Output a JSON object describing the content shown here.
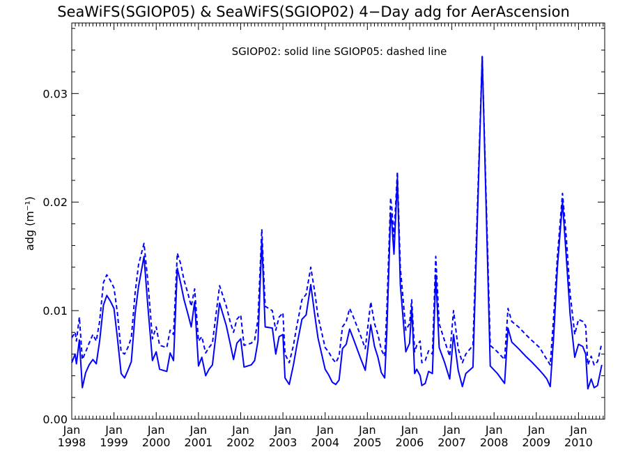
{
  "chart_data": {
    "type": "line",
    "title": "SeaWiFS(SGIOP05) & SeaWiFS(SGIOP02) 4−Day adg for AerAscension",
    "ylabel": "adg (m⁻¹)",
    "xlabel": "",
    "annotation": "SGIOP02: solid line   SGIOP05: dashed line",
    "xlim": [
      1998.0,
      2010.62
    ],
    "ylim": [
      0.0,
      0.0365
    ],
    "y_ticks": [
      {
        "value": 0.0,
        "label": "0.00"
      },
      {
        "value": 0.01,
        "label": "0.01"
      },
      {
        "value": 0.02,
        "label": "0.02"
      },
      {
        "value": 0.03,
        "label": "0.03"
      }
    ],
    "x_ticks": [
      {
        "value": 1998,
        "month": "Jan",
        "year": "1998"
      },
      {
        "value": 1999,
        "month": "Jan",
        "year": "1999"
      },
      {
        "value": 2000,
        "month": "Jan",
        "year": "2000"
      },
      {
        "value": 2001,
        "month": "Jan",
        "year": "2001"
      },
      {
        "value": 2002,
        "month": "Jan",
        "year": "2002"
      },
      {
        "value": 2003,
        "month": "Jan",
        "year": "2003"
      },
      {
        "value": 2004,
        "month": "Jan",
        "year": "2004"
      },
      {
        "value": 2005,
        "month": "Jan",
        "year": "2005"
      },
      {
        "value": 2006,
        "month": "Jan",
        "year": "2006"
      },
      {
        "value": 2007,
        "month": "Jan",
        "year": "2007"
      },
      {
        "value": 2008,
        "month": "Jan",
        "year": "2008"
      },
      {
        "value": 2009,
        "month": "Jan",
        "year": "2009"
      },
      {
        "value": 2010,
        "month": "Jan",
        "year": "2010"
      }
    ],
    "grid": false,
    "line_color": "#0000ff",
    "series": [
      {
        "name": "SGIOP02",
        "style": "solid",
        "points": [
          [
            1998.0,
            0.0052
          ],
          [
            1998.08,
            0.006
          ],
          [
            1998.11,
            0.0051
          ],
          [
            1998.18,
            0.0073
          ],
          [
            1998.25,
            0.0029
          ],
          [
            1998.33,
            0.0043
          ],
          [
            1998.41,
            0.005
          ],
          [
            1998.5,
            0.0055
          ],
          [
            1998.58,
            0.0051
          ],
          [
            1998.66,
            0.0072
          ],
          [
            1998.75,
            0.0105
          ],
          [
            1998.83,
            0.0114
          ],
          [
            1998.91,
            0.0109
          ],
          [
            1999.0,
            0.0102
          ],
          [
            1999.08,
            0.0075
          ],
          [
            1999.17,
            0.0042
          ],
          [
            1999.25,
            0.0038
          ],
          [
            1999.33,
            0.0045
          ],
          [
            1999.41,
            0.0053
          ],
          [
            1999.5,
            0.0097
          ],
          [
            1999.58,
            0.0122
          ],
          [
            1999.71,
            0.015
          ],
          [
            1999.8,
            0.0105
          ],
          [
            1999.91,
            0.0054
          ],
          [
            2000.0,
            0.0062
          ],
          [
            2000.08,
            0.0046
          ],
          [
            2000.25,
            0.0044
          ],
          [
            2000.33,
            0.0061
          ],
          [
            2000.41,
            0.0054
          ],
          [
            2000.5,
            0.0139
          ],
          [
            2000.58,
            0.0125
          ],
          [
            2000.66,
            0.011
          ],
          [
            2000.75,
            0.0097
          ],
          [
            2000.83,
            0.0085
          ],
          [
            2000.91,
            0.0108
          ],
          [
            2001.0,
            0.0049
          ],
          [
            2001.08,
            0.0057
          ],
          [
            2001.17,
            0.004
          ],
          [
            2001.25,
            0.0046
          ],
          [
            2001.33,
            0.005
          ],
          [
            2001.5,
            0.0107
          ],
          [
            2001.66,
            0.0086
          ],
          [
            2001.75,
            0.007
          ],
          [
            2001.83,
            0.0055
          ],
          [
            2001.91,
            0.007
          ],
          [
            2002.0,
            0.0074
          ],
          [
            2002.08,
            0.0048
          ],
          [
            2002.25,
            0.005
          ],
          [
            2002.33,
            0.0054
          ],
          [
            2002.41,
            0.0072
          ],
          [
            2002.5,
            0.0165
          ],
          [
            2002.58,
            0.0085
          ],
          [
            2002.75,
            0.0084
          ],
          [
            2002.83,
            0.006
          ],
          [
            2002.91,
            0.0076
          ],
          [
            2003.0,
            0.0078
          ],
          [
            2003.05,
            0.0038
          ],
          [
            2003.15,
            0.0032
          ],
          [
            2003.25,
            0.005
          ],
          [
            2003.33,
            0.0068
          ],
          [
            2003.45,
            0.0092
          ],
          [
            2003.55,
            0.0096
          ],
          [
            2003.66,
            0.0124
          ],
          [
            2003.75,
            0.0097
          ],
          [
            2003.83,
            0.0075
          ],
          [
            2004.0,
            0.0046
          ],
          [
            2004.08,
            0.0041
          ],
          [
            2004.17,
            0.0034
          ],
          [
            2004.25,
            0.0032
          ],
          [
            2004.33,
            0.0036
          ],
          [
            2004.41,
            0.0065
          ],
          [
            2004.5,
            0.0069
          ],
          [
            2004.58,
            0.0083
          ],
          [
            2004.66,
            0.0075
          ],
          [
            2004.83,
            0.0057
          ],
          [
            2004.95,
            0.0045
          ],
          [
            2005.08,
            0.0087
          ],
          [
            2005.17,
            0.0067
          ],
          [
            2005.25,
            0.0057
          ],
          [
            2005.33,
            0.0043
          ],
          [
            2005.41,
            0.0038
          ],
          [
            2005.46,
            0.0079
          ],
          [
            2005.55,
            0.019
          ],
          [
            2005.58,
            0.018
          ],
          [
            2005.63,
            0.0152
          ],
          [
            2005.71,
            0.0222
          ],
          [
            2005.78,
            0.0124
          ],
          [
            2005.91,
            0.0062
          ],
          [
            2006.0,
            0.007
          ],
          [
            2006.05,
            0.0103
          ],
          [
            2006.12,
            0.0042
          ],
          [
            2006.17,
            0.0046
          ],
          [
            2006.25,
            0.004
          ],
          [
            2006.29,
            0.0031
          ],
          [
            2006.37,
            0.0033
          ],
          [
            2006.45,
            0.0044
          ],
          [
            2006.54,
            0.0042
          ],
          [
            2006.62,
            0.0133
          ],
          [
            2006.7,
            0.0066
          ],
          [
            2006.83,
            0.0052
          ],
          [
            2006.95,
            0.0037
          ],
          [
            2007.04,
            0.0078
          ],
          [
            2007.15,
            0.0045
          ],
          [
            2007.25,
            0.003
          ],
          [
            2007.33,
            0.0042
          ],
          [
            2007.5,
            0.0048
          ],
          [
            2007.72,
            0.0334
          ],
          [
            2007.91,
            0.0049
          ],
          [
            2008.08,
            0.0042
          ],
          [
            2008.25,
            0.0033
          ],
          [
            2008.33,
            0.0084
          ],
          [
            2008.42,
            0.0071
          ],
          [
            2008.58,
            0.0065
          ],
          [
            2008.75,
            0.0058
          ],
          [
            2008.91,
            0.0052
          ],
          [
            2009.08,
            0.0045
          ],
          [
            2009.17,
            0.0041
          ],
          [
            2009.25,
            0.0037
          ],
          [
            2009.33,
            0.003
          ],
          [
            2009.41,
            0.0076
          ],
          [
            2009.5,
            0.014
          ],
          [
            2009.62,
            0.02
          ],
          [
            2009.71,
            0.015
          ],
          [
            2009.8,
            0.0097
          ],
          [
            2009.91,
            0.0057
          ],
          [
            2010.0,
            0.0069
          ],
          [
            2010.1,
            0.0067
          ],
          [
            2010.17,
            0.006
          ],
          [
            2010.22,
            0.0028
          ],
          [
            2010.3,
            0.0037
          ],
          [
            2010.37,
            0.0029
          ],
          [
            2010.45,
            0.0031
          ],
          [
            2010.55,
            0.005
          ]
        ]
      },
      {
        "name": "SGIOP05",
        "style": "dashed",
        "points": [
          [
            1998.0,
            0.0075
          ],
          [
            1998.08,
            0.008
          ],
          [
            1998.11,
            0.0072
          ],
          [
            1998.18,
            0.0094
          ],
          [
            1998.25,
            0.0055
          ],
          [
            1998.33,
            0.0062
          ],
          [
            1998.41,
            0.007
          ],
          [
            1998.5,
            0.0078
          ],
          [
            1998.58,
            0.0072
          ],
          [
            1998.66,
            0.009
          ],
          [
            1998.75,
            0.0126
          ],
          [
            1998.83,
            0.0133
          ],
          [
            1998.91,
            0.0128
          ],
          [
            1999.0,
            0.0121
          ],
          [
            1999.08,
            0.0098
          ],
          [
            1999.17,
            0.0062
          ],
          [
            1999.25,
            0.006
          ],
          [
            1999.33,
            0.0066
          ],
          [
            1999.41,
            0.0075
          ],
          [
            1999.5,
            0.0116
          ],
          [
            1999.58,
            0.0142
          ],
          [
            1999.71,
            0.0162
          ],
          [
            1999.8,
            0.0128
          ],
          [
            1999.91,
            0.0074
          ],
          [
            2000.0,
            0.0085
          ],
          [
            2000.08,
            0.0068
          ],
          [
            2000.25,
            0.0066
          ],
          [
            2000.33,
            0.0082
          ],
          [
            2000.41,
            0.0078
          ],
          [
            2000.5,
            0.0153
          ],
          [
            2000.58,
            0.0143
          ],
          [
            2000.66,
            0.0128
          ],
          [
            2000.75,
            0.0116
          ],
          [
            2000.83,
            0.0104
          ],
          [
            2000.91,
            0.012
          ],
          [
            2001.0,
            0.0072
          ],
          [
            2001.08,
            0.0076
          ],
          [
            2001.17,
            0.0061
          ],
          [
            2001.25,
            0.0066
          ],
          [
            2001.33,
            0.007
          ],
          [
            2001.5,
            0.0123
          ],
          [
            2001.66,
            0.0104
          ],
          [
            2001.75,
            0.009
          ],
          [
            2001.83,
            0.008
          ],
          [
            2001.91,
            0.0092
          ],
          [
            2002.0,
            0.0096
          ],
          [
            2002.08,
            0.0068
          ],
          [
            2002.25,
            0.007
          ],
          [
            2002.33,
            0.0073
          ],
          [
            2002.41,
            0.0092
          ],
          [
            2002.5,
            0.0175
          ],
          [
            2002.58,
            0.0104
          ],
          [
            2002.75,
            0.01
          ],
          [
            2002.83,
            0.0082
          ],
          [
            2002.91,
            0.0094
          ],
          [
            2003.0,
            0.0098
          ],
          [
            2003.05,
            0.006
          ],
          [
            2003.15,
            0.0052
          ],
          [
            2003.25,
            0.0068
          ],
          [
            2003.33,
            0.0086
          ],
          [
            2003.45,
            0.011
          ],
          [
            2003.55,
            0.0115
          ],
          [
            2003.66,
            0.014
          ],
          [
            2003.75,
            0.0118
          ],
          [
            2003.83,
            0.0095
          ],
          [
            2004.0,
            0.0066
          ],
          [
            2004.08,
            0.0062
          ],
          [
            2004.17,
            0.0056
          ],
          [
            2004.25,
            0.0052
          ],
          [
            2004.33,
            0.0058
          ],
          [
            2004.41,
            0.0085
          ],
          [
            2004.5,
            0.009
          ],
          [
            2004.58,
            0.0102
          ],
          [
            2004.66,
            0.0095
          ],
          [
            2004.83,
            0.0078
          ],
          [
            2004.95,
            0.0065
          ],
          [
            2005.08,
            0.0108
          ],
          [
            2005.17,
            0.0088
          ],
          [
            2005.25,
            0.0078
          ],
          [
            2005.33,
            0.0064
          ],
          [
            2005.41,
            0.0058
          ],
          [
            2005.46,
            0.01
          ],
          [
            2005.55,
            0.0204
          ],
          [
            2005.58,
            0.0194
          ],
          [
            2005.63,
            0.0168
          ],
          [
            2005.71,
            0.0228
          ],
          [
            2005.78,
            0.014
          ],
          [
            2005.91,
            0.0082
          ],
          [
            2006.0,
            0.0088
          ],
          [
            2006.05,
            0.011
          ],
          [
            2006.12,
            0.0062
          ],
          [
            2006.17,
            0.0068
          ],
          [
            2006.25,
            0.0072
          ],
          [
            2006.29,
            0.0052
          ],
          [
            2006.37,
            0.0054
          ],
          [
            2006.45,
            0.0063
          ],
          [
            2006.54,
            0.006
          ],
          [
            2006.62,
            0.015
          ],
          [
            2006.7,
            0.0088
          ],
          [
            2006.83,
            0.0072
          ],
          [
            2006.95,
            0.0058
          ],
          [
            2007.04,
            0.01
          ],
          [
            2007.15,
            0.0065
          ],
          [
            2007.25,
            0.0052
          ],
          [
            2007.33,
            0.006
          ],
          [
            2007.5,
            0.0068
          ],
          [
            2007.72,
            0.0334
          ],
          [
            2007.91,
            0.0068
          ],
          [
            2008.08,
            0.0062
          ],
          [
            2008.25,
            0.0055
          ],
          [
            2008.33,
            0.0102
          ],
          [
            2008.42,
            0.009
          ],
          [
            2008.58,
            0.0085
          ],
          [
            2008.75,
            0.0078
          ],
          [
            2008.91,
            0.0072
          ],
          [
            2009.08,
            0.0066
          ],
          [
            2009.17,
            0.006
          ],
          [
            2009.25,
            0.0055
          ],
          [
            2009.33,
            0.005
          ],
          [
            2009.41,
            0.0094
          ],
          [
            2009.5,
            0.015
          ],
          [
            2009.62,
            0.0208
          ],
          [
            2009.71,
            0.0168
          ],
          [
            2009.8,
            0.0116
          ],
          [
            2009.91,
            0.0078
          ],
          [
            2010.0,
            0.0092
          ],
          [
            2010.1,
            0.009
          ],
          [
            2010.17,
            0.0086
          ],
          [
            2010.22,
            0.005
          ],
          [
            2010.3,
            0.0058
          ],
          [
            2010.37,
            0.005
          ],
          [
            2010.45,
            0.0053
          ],
          [
            2010.55,
            0.007
          ]
        ]
      }
    ]
  }
}
